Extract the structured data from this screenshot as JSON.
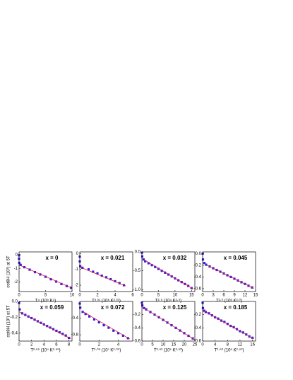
{
  "chart_data": [
    {
      "type": "scatter",
      "annotation": "x = 0",
      "xlabel": "T⁴ (10⁹ K⁴)",
      "ylabel": "cotθH (10²) at 5T",
      "xlim": [
        0,
        10
      ],
      "xticks": [
        0,
        5,
        10
      ],
      "ylim": [
        -2.7,
        0.2
      ],
      "yticks": [
        0,
        -1,
        -2
      ],
      "series": [
        {
          "style": "markers",
          "color": "#2f1fe0",
          "x": [
            0,
            0,
            0.05,
            0.3,
            1,
            2,
            3,
            4,
            5,
            6,
            7,
            8,
            9,
            9.8
          ],
          "values": [
            -0.05,
            -0.3,
            -0.6,
            -0.75,
            -0.92,
            -1.1,
            -1.28,
            -1.45,
            -1.62,
            -1.8,
            -1.97,
            -2.15,
            -2.3,
            -2.42
          ]
        },
        {
          "style": "line",
          "color": "#e0143c",
          "x": [
            0,
            10
          ],
          "values": [
            -0.75,
            -2.45
          ]
        }
      ]
    },
    {
      "type": "scatter",
      "annotation": "x = 0.021",
      "xlabel": "T³.⁹¹ (10⁸ K³.⁹¹)",
      "xlim": [
        0,
        6
      ],
      "xticks": [
        0,
        2,
        4,
        6
      ],
      "ylim": [
        -2.4,
        0.1
      ],
      "yticks": [
        0,
        -1,
        -2
      ],
      "series": [
        {
          "style": "markers",
          "color": "#2f1fe0",
          "x": [
            0,
            0,
            0.05,
            0.3,
            1,
            1.5,
            2,
            2.5,
            3,
            3.5,
            4,
            4.5,
            5
          ],
          "values": [
            -0.2,
            -0.5,
            -0.8,
            -0.9,
            -1.0,
            -1.15,
            -1.25,
            -1.4,
            -1.5,
            -1.62,
            -1.75,
            -1.87,
            -2.0
          ]
        },
        {
          "style": "line",
          "color": "#e0143c",
          "x": [
            0,
            5.2
          ],
          "values": [
            -0.85,
            -2.05
          ]
        }
      ]
    },
    {
      "type": "scatter",
      "annotation": "x = 0.032",
      "xlabel": "T²·⁹ (10⁴ K²·⁹)",
      "xlim": [
        0,
        16
      ],
      "xticks": [
        0,
        5,
        10,
        15
      ],
      "ylim": [
        -1.05,
        0
      ],
      "yticks": [
        {
          "value": 0,
          "label": "0.0"
        },
        -0.5,
        {
          "value": -1,
          "label": "-1.0"
        }
      ],
      "series": [
        {
          "style": "markers",
          "color": "#2f1fe0",
          "x": [
            0,
            0.1,
            0.5,
            1,
            2,
            3,
            4,
            5,
            6,
            7,
            8,
            9,
            10,
            11,
            12,
            13,
            14,
            15
          ],
          "values": [
            -0.02,
            -0.12,
            -0.2,
            -0.25,
            -0.3,
            -0.35,
            -0.4,
            -0.45,
            -0.5,
            -0.55,
            -0.6,
            -0.65,
            -0.7,
            -0.75,
            -0.8,
            -0.85,
            -0.9,
            -0.96
          ]
        },
        {
          "style": "line",
          "color": "#e0143c",
          "x": [
            0.5,
            15.5
          ],
          "values": [
            -0.2,
            -0.98
          ]
        }
      ]
    },
    {
      "type": "scatter",
      "annotation": "x = 0.045",
      "xlabel": "T³·⁰ (10⁶ K³·⁰)",
      "xlim": [
        0,
        15
      ],
      "xticks": [
        0,
        3,
        6,
        9,
        12,
        15
      ],
      "ylim": [
        -0.65,
        0.03
      ],
      "yticks": [
        {
          "value": 0,
          "label": "0.0"
        },
        -0.2,
        -0.4,
        -0.6
      ],
      "series": [
        {
          "style": "markers",
          "color": "#2f1fe0",
          "x": [
            0,
            0.1,
            0.5,
            1,
            2,
            3,
            4,
            5,
            6,
            7,
            8,
            9,
            10,
            11,
            12,
            13,
            14
          ],
          "values": [
            0,
            -0.1,
            -0.16,
            -0.19,
            -0.22,
            -0.25,
            -0.28,
            -0.31,
            -0.34,
            -0.37,
            -0.4,
            -0.43,
            -0.46,
            -0.49,
            -0.52,
            -0.55,
            -0.58
          ]
        },
        {
          "style": "line",
          "color": "#e0143c",
          "x": [
            1,
            14.5
          ],
          "values": [
            -0.19,
            -0.595
          ]
        }
      ]
    },
    {
      "type": "scatter",
      "annotation": "x = 0.059",
      "xlabel": "T²·⁶⁹ (10⁴ K²·⁶⁹)",
      "ylabel": "cotθH (10²) at 5T",
      "xlim": [
        0,
        8.5
      ],
      "xticks": [
        0,
        2,
        4,
        6,
        8
      ],
      "ylim": [
        -0.5,
        0
      ],
      "yticks": [
        {
          "value": 0,
          "label": "0.0"
        },
        -0.2,
        -0.4
      ],
      "series": [
        {
          "style": "markers",
          "color": "#2f1fe0",
          "x": [
            0,
            0.1,
            0.5,
            1,
            1.5,
            2,
            2.5,
            3,
            3.5,
            4,
            4.5,
            5,
            5.5,
            6,
            6.5,
            7,
            7.5,
            8
          ],
          "values": [
            -0.02,
            -0.1,
            -0.15,
            -0.17,
            -0.19,
            -0.21,
            -0.23,
            -0.25,
            -0.27,
            -0.29,
            -0.31,
            -0.33,
            -0.35,
            -0.37,
            -0.39,
            -0.41,
            -0.43,
            -0.46
          ]
        },
        {
          "style": "line",
          "color": "#e0143c",
          "x": [
            0,
            8.3
          ],
          "values": [
            -0.13,
            -0.47
          ]
        }
      ]
    },
    {
      "type": "scatter",
      "annotation": "x = 0.072",
      "xlabel": "T³·⁰⁹ (10⁷ K³·⁰⁹)",
      "xlim": [
        0,
        5.5
      ],
      "xticks": [
        0,
        2,
        4
      ],
      "ylim": [
        -0.95,
        0
      ],
      "yticks": [
        -0.4,
        -0.8
      ],
      "series": [
        {
          "style": "markers",
          "color": "#2f1fe0",
          "x": [
            0,
            0.05,
            0.3,
            0.6,
            1,
            1.5,
            2,
            2.5,
            3,
            3.5,
            4,
            4.5,
            5
          ],
          "values": [
            -0.05,
            -0.15,
            -0.25,
            -0.3,
            -0.36,
            -0.43,
            -0.5,
            -0.57,
            -0.63,
            -0.7,
            -0.76,
            -0.82,
            -0.88
          ]
        },
        {
          "style": "line",
          "color": "#e0143c",
          "x": [
            0.3,
            5.2
          ],
          "values": [
            -0.24,
            -0.9
          ]
        }
      ]
    },
    {
      "type": "scatter",
      "annotation": "x = 0.125",
      "xlabel": "T²·⁶³ (10⁵ K²·⁶³)",
      "xlim": [
        0,
        25
      ],
      "xticks": [
        0,
        5,
        10,
        15,
        20,
        25
      ],
      "ylim": [
        -0.6,
        0
      ],
      "yticks": [
        -0.2,
        -0.4,
        -0.6
      ],
      "series": [
        {
          "style": "markers",
          "color": "#2f1fe0",
          "x": [
            0,
            0.2,
            1,
            2,
            4,
            6,
            8,
            10,
            12,
            14,
            16,
            18,
            20,
            22,
            24
          ],
          "values": [
            -0.02,
            -0.06,
            -0.1,
            -0.12,
            -0.16,
            -0.2,
            -0.24,
            -0.28,
            -0.32,
            -0.36,
            -0.4,
            -0.44,
            -0.48,
            -0.52,
            -0.56
          ]
        },
        {
          "style": "line",
          "color": "#e0143c",
          "x": [
            0,
            25
          ],
          "values": [
            -0.08,
            -0.58
          ]
        }
      ]
    },
    {
      "type": "scatter",
      "annotation": "x = 0.185",
      "xlabel": "T²·⁵⁰ (10⁵ K²·⁵⁰)",
      "xlim": [
        0,
        17
      ],
      "xticks": [
        0,
        4,
        8,
        12,
        16
      ],
      "ylim": [
        -0.6,
        0
      ],
      "yticks": [
        -0.2,
        -0.4,
        -0.6
      ],
      "series": [
        {
          "style": "markers",
          "color": "#2f1fe0",
          "x": [
            0,
            0.1,
            0.5,
            1,
            2,
            3,
            4,
            5,
            6,
            7,
            8,
            9,
            10,
            11,
            12,
            13,
            14,
            15,
            16
          ],
          "values": [
            -0.02,
            -0.1,
            -0.14,
            -0.16,
            -0.18,
            -0.21,
            -0.24,
            -0.26,
            -0.29,
            -0.31,
            -0.34,
            -0.37,
            -0.39,
            -0.42,
            -0.45,
            -0.47,
            -0.5,
            -0.53,
            -0.55
          ]
        },
        {
          "style": "line",
          "color": "#e0143c",
          "x": [
            0,
            16.5
          ],
          "values": [
            -0.13,
            -0.57
          ]
        }
      ]
    }
  ]
}
